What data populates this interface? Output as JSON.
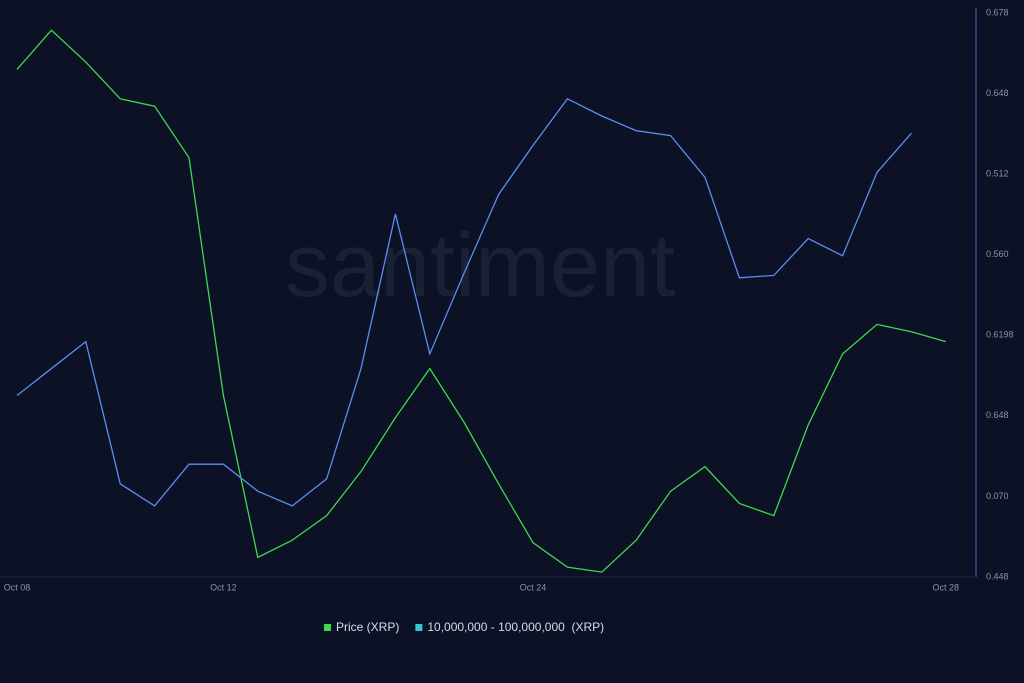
{
  "chart_data": {
    "type": "line",
    "watermark": "santiment",
    "categories": [
      "Oct 08",
      null,
      null,
      null,
      null,
      null,
      "Oct 12",
      null,
      null,
      null,
      null,
      null,
      null,
      null,
      null,
      "Oct 24",
      null,
      null,
      null,
      null,
      null,
      null,
      null,
      null,
      null,
      null,
      null,
      "Oct 28"
    ],
    "series": [
      {
        "name": "Price (XRP)",
        "color": "#3fd94a",
        "values": [
          0.655,
          0.671,
          0.658,
          0.643,
          0.64,
          0.619,
          0.522,
          0.456,
          0.463,
          0.473,
          0.491,
          0.513,
          0.533,
          0.511,
          0.486,
          0.462,
          0.452,
          0.45,
          0.463,
          0.483,
          0.493,
          0.478,
          0.473,
          0.51,
          0.539,
          0.551,
          0.548,
          0.544
        ]
      },
      {
        "name": "10,000,000 - 100,000,000  (XRP)",
        "color": "#5b8def",
        "values": [
          0.522,
          0.533,
          0.544,
          0.486,
          0.477,
          0.494,
          0.494,
          0.483,
          0.477,
          0.488,
          0.533,
          0.596,
          0.539,
          0.572,
          0.604,
          0.624,
          0.643,
          0.636,
          0.63,
          0.628,
          0.611,
          0.57,
          0.571,
          0.586,
          0.579,
          0.613,
          0.629,
          null
        ]
      }
    ],
    "ylim": [
      0.448,
      0.678
    ],
    "y_axis_labels": [
      "0.678",
      "0.648",
      "0.512",
      "0.560",
      "0.6198",
      "0.648",
      "0.070",
      "0.448"
    ]
  }
}
